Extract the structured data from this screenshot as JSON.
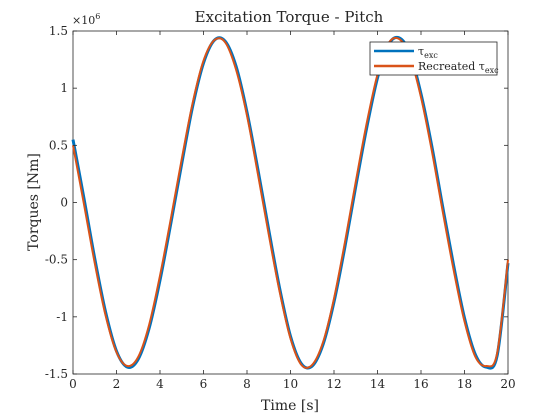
{
  "chart_data": {
    "type": "line",
    "title": "Excitation Torque - Pitch",
    "xlabel": "Time [s]",
    "ylabel": "Torques [Nm]",
    "xlim": [
      0,
      20
    ],
    "ylim": [
      -1.5,
      1.5
    ],
    "y_scale_label": "×10",
    "y_scale_exponent": "6",
    "x_ticks": [
      0,
      2,
      4,
      6,
      8,
      10,
      12,
      14,
      16,
      18,
      20
    ],
    "x_tick_labels": [
      "0",
      "2",
      "4",
      "6",
      "8",
      "10",
      "12",
      "14",
      "16",
      "18",
      "20"
    ],
    "y_ticks": [
      -1.5,
      -1,
      -0.5,
      0,
      0.5,
      1,
      1.5
    ],
    "y_tick_labels": [
      "-1.5",
      "-1",
      "-0.5",
      "0",
      "0.5",
      "1",
      "1.5"
    ],
    "grid": false,
    "legend_position": "top-right",
    "series": [
      {
        "name": "τ_exc",
        "color": "#0072BD",
        "x": [
          0,
          0.5,
          1,
          1.5,
          2,
          2.5,
          3,
          3.5,
          4,
          4.5,
          5,
          5.5,
          6,
          6.5,
          7,
          7.5,
          8,
          8.5,
          9,
          9.5,
          10,
          10.5,
          11,
          11.5,
          12,
          12.5,
          13,
          13.5,
          14,
          14.5,
          15,
          15.5,
          16,
          16.5,
          17,
          17.5,
          18,
          18.5,
          19,
          19.5,
          20
        ],
        "y": [
          0.55,
          0.04,
          -0.49,
          -0.96,
          -1.3,
          -1.44,
          -1.37,
          -1.1,
          -0.68,
          -0.18,
          0.34,
          0.84,
          1.22,
          1.42,
          1.41,
          1.19,
          0.79,
          0.29,
          -0.24,
          -0.75,
          -1.17,
          -1.41,
          -1.43,
          -1.24,
          -0.87,
          -0.39,
          0.14,
          0.65,
          1.09,
          1.38,
          1.44,
          1.3,
          0.95,
          0.49,
          -0.04,
          -0.55,
          -1.01,
          -1.33,
          -1.44,
          -1.34,
          -0.53
        ]
      },
      {
        "name": "Recreated τ_exc",
        "color": "#D95319",
        "x": [
          0,
          0.5,
          1,
          1.5,
          2,
          2.5,
          3,
          3.5,
          4,
          4.5,
          5,
          5.5,
          6,
          6.5,
          7,
          7.5,
          8,
          8.5,
          9,
          9.5,
          10,
          10.5,
          11,
          11.5,
          12,
          12.5,
          13,
          13.5,
          14,
          14.5,
          15,
          15.5,
          16,
          16.5,
          17,
          17.5,
          18,
          18.5,
          19,
          19.5,
          20
        ],
        "y": [
          0.5,
          -0.01,
          -0.53,
          -0.99,
          -1.31,
          -1.43,
          -1.35,
          -1.07,
          -0.64,
          -0.14,
          0.38,
          0.87,
          1.24,
          1.42,
          1.4,
          1.16,
          0.76,
          0.25,
          -0.28,
          -0.78,
          -1.19,
          -1.42,
          -1.42,
          -1.22,
          -0.84,
          -0.35,
          0.18,
          0.69,
          1.12,
          1.39,
          1.43,
          1.27,
          0.92,
          0.45,
          -0.08,
          -0.59,
          -1.04,
          -1.35,
          -1.43,
          -1.32,
          -0.5
        ]
      }
    ]
  }
}
